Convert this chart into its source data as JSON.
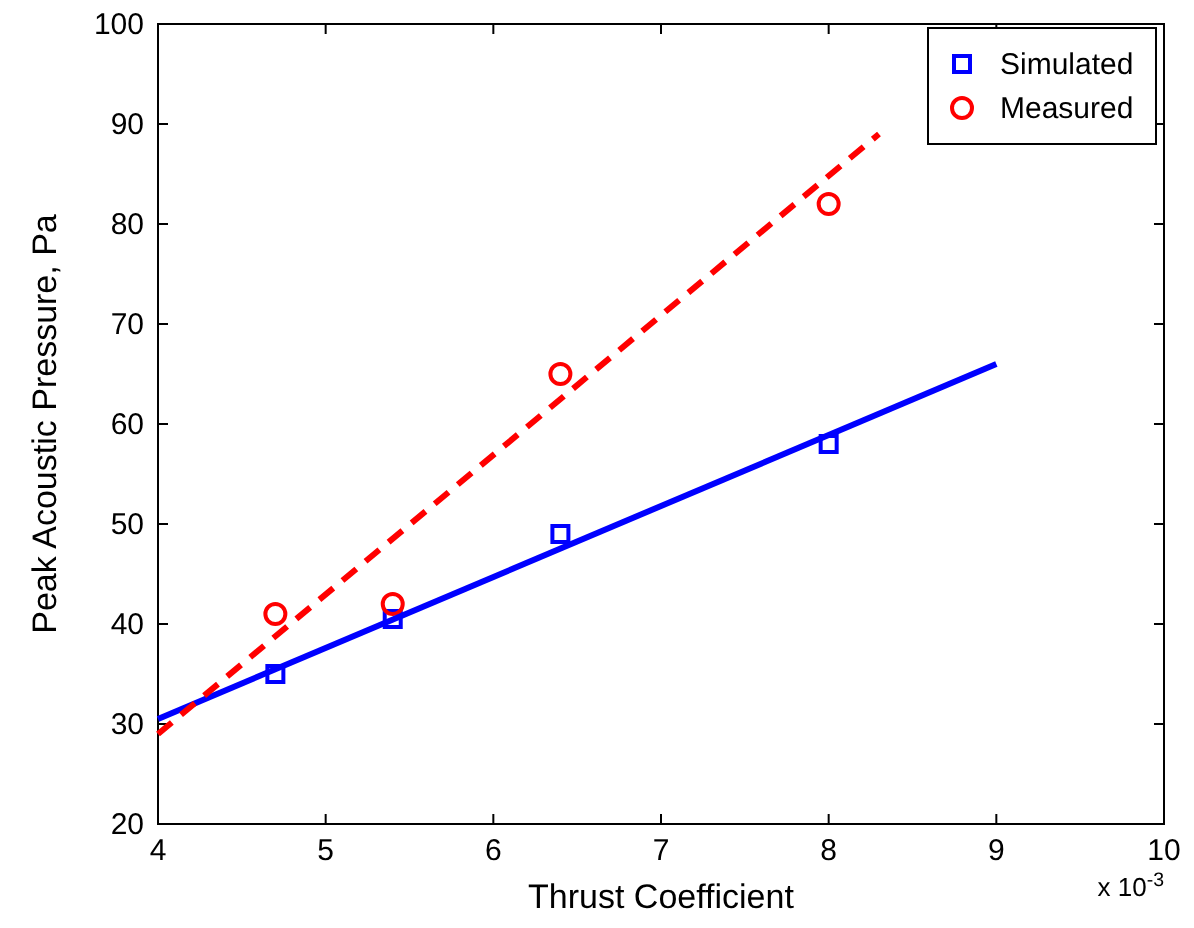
{
  "chart_data": {
    "type": "scatter",
    "xlabel": "Thrust Coefficient",
    "ylabel": "Peak Acoustic Pressure, Pa",
    "annotations": [
      "x 10$^{-3}$"
    ],
    "xlim": [
      4,
      10
    ],
    "xticks": [
      4,
      5,
      6,
      7,
      8,
      9,
      10
    ],
    "ylim": [
      20,
      100
    ],
    "yticks": [
      20,
      30,
      40,
      50,
      60,
      70,
      80,
      90,
      100
    ],
    "grid": false,
    "legend": "top right",
    "series": [
      {
        "name": "Simulated",
        "marker": "square",
        "color": "#0000ff",
        "x": [
          4.7,
          5.4,
          6.4,
          8
        ],
        "values": [
          35,
          40.5,
          49,
          58
        ]
      },
      {
        "name": "Measured",
        "marker": "circle",
        "color": "#ff0000",
        "x": [
          4.7,
          5.4,
          6.4,
          8
        ],
        "values": [
          41,
          42,
          65,
          82
        ]
      },
      {
        "type": "line",
        "line_style": "solid",
        "color": "#0000ff",
        "x": [
          4,
          9
        ],
        "values": [
          30.5,
          66
        ]
      },
      {
        "type": "line",
        "line_style": "dashed",
        "color": "#ff0000",
        "x": [
          4,
          8.3
        ],
        "values": [
          29,
          89
        ]
      }
    ]
  }
}
